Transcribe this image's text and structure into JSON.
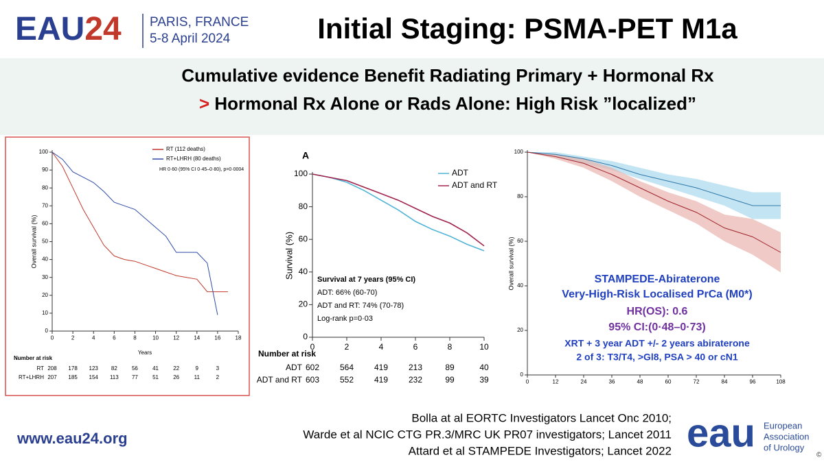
{
  "header": {
    "logo_eau": "EAU",
    "logo_year": "24",
    "location": "PARIS, FRANCE",
    "dates": "5-8 April 2024",
    "title": "Initial Staging: PSMA-PET M1a"
  },
  "subtitle": {
    "line1": "Cumulative evidence Benefit Radiating Primary + Hormonal Rx",
    "marker": ">",
    "line2": "Hormonal Rx Alone or Rads Alone:  High Risk ”localized”"
  },
  "chart_data": [
    {
      "type": "line",
      "x_label": "Years",
      "y_label": "Overall survival (%)",
      "x": [
        0,
        1,
        2,
        3,
        4,
        5,
        6,
        7,
        8,
        9,
        10,
        11,
        12,
        13,
        14,
        15,
        16,
        17
      ],
      "series": [
        {
          "name": "RT (112 deaths)",
          "color": "#c0392b",
          "values": [
            100,
            92,
            80,
            68,
            58,
            48,
            42,
            40,
            39,
            37,
            35,
            33,
            31,
            30,
            29,
            22,
            22,
            22
          ]
        },
        {
          "name": "RT+LHRH (80 deaths)",
          "color": "#2c4aa8",
          "values": [
            100,
            96,
            89,
            86,
            83,
            78,
            72,
            70,
            68,
            63,
            58,
            53,
            44,
            44,
            44,
            38,
            9,
            null
          ]
        }
      ],
      "annotation": "HR 0·60 (95% CI 0·45–0·80), p=0·0004",
      "xlim": [
        0,
        18
      ],
      "xticks": [
        0,
        2,
        4,
        6,
        8,
        10,
        12,
        14,
        16,
        18
      ],
      "ylim": [
        0,
        100
      ],
      "yticks": [
        0,
        10,
        20,
        30,
        40,
        50,
        60,
        70,
        80,
        90,
        100
      ],
      "risk_table": {
        "title": "Number at risk",
        "rows": [
          {
            "label": "RT",
            "values": [
              208,
              178,
              123,
              82,
              56,
              41,
              22,
              9,
              3
            ]
          },
          {
            "label": "RT+LHRH",
            "values": [
              207,
              185,
              154,
              113,
              77,
              51,
              26,
              11,
              2
            ]
          }
        ]
      }
    },
    {
      "type": "line",
      "panel_label": "A",
      "y_label": "Survival (%)",
      "x": [
        0,
        1,
        2,
        3,
        4,
        5,
        6,
        7,
        8,
        9,
        10
      ],
      "series": [
        {
          "name": "ADT",
          "color": "#4fb3d6",
          "values": [
            100,
            98,
            95,
            90,
            84,
            78,
            71,
            66,
            62,
            57,
            53
          ]
        },
        {
          "name": "ADT and RT",
          "color": "#a0224a",
          "values": [
            100,
            98,
            96,
            92,
            88,
            84,
            79,
            74,
            70,
            64,
            56
          ]
        }
      ],
      "box_text": [
        "Survival at 7 years (95% CI)",
        "ADT: 66% (60-70)",
        "ADT and RT: 74% (70-78)",
        "Log-rank p=0·03"
      ],
      "xlim": [
        0,
        10
      ],
      "xticks": [
        0,
        2,
        4,
        6,
        8,
        10
      ],
      "ylim": [
        0,
        100
      ],
      "yticks": [
        0,
        20,
        40,
        60,
        80,
        100
      ],
      "risk_table": {
        "title": "Number at risk",
        "rows": [
          {
            "label": "ADT",
            "values": [
              602,
              564,
              419,
              213,
              89,
              40
            ]
          },
          {
            "label": "ADT and RT",
            "values": [
              603,
              552,
              419,
              232,
              99,
              39
            ]
          }
        ]
      }
    },
    {
      "type": "line",
      "y_label": "Overall survival (%)",
      "x": [
        0,
        12,
        24,
        36,
        48,
        60,
        72,
        84,
        96,
        108
      ],
      "series": [
        {
          "color": "#2f78a8",
          "band_color": "#a9d8ec",
          "values": [
            100,
            99,
            97,
            94,
            90,
            87,
            84,
            80,
            76,
            76
          ],
          "lower": [
            100,
            98,
            95,
            92,
            88,
            84,
            80,
            76,
            70,
            70
          ],
          "upper": [
            100,
            100,
            98,
            96,
            93,
            90,
            88,
            85,
            82,
            82
          ]
        },
        {
          "color": "#a0222c",
          "band_color": "#e8b3ae",
          "values": [
            100,
            98,
            95,
            90,
            84,
            78,
            73,
            66,
            62,
            55
          ],
          "lower": [
            100,
            97,
            93,
            87,
            80,
            74,
            68,
            60,
            54,
            46
          ],
          "upper": [
            100,
            99,
            97,
            93,
            87,
            82,
            78,
            72,
            70,
            64
          ]
        }
      ],
      "annotations": [
        {
          "text": "STAMPEDE-Abiraterone",
          "color": "#1f3fbf"
        },
        {
          "text": "Very-High-Risk Localised PrCa (M0*)",
          "color": "#1f3fbf"
        },
        {
          "text": "HR(OS): 0.6",
          "color": "#7030a0"
        },
        {
          "text": "95% CI:(0·48–0·73)",
          "color": "#7030a0"
        },
        {
          "text": "XRT + 3 year ADT +/- 2 years abiraterone",
          "color": "#1f3fbf"
        },
        {
          "text": "2 of 3: T3/T4, >Gl8, PSA > 40 or cN1",
          "color": "#1f3fbf"
        }
      ],
      "xlim": [
        0,
        108
      ],
      "xticks": [
        0,
        12,
        24,
        36,
        48,
        60,
        72,
        84,
        96,
        108
      ],
      "ylim": [
        0,
        100
      ],
      "yticks": [
        0,
        20,
        40,
        60,
        80,
        100
      ]
    }
  ],
  "footer": {
    "url": "www.eau24.org",
    "references": [
      "Bolla at al EORTC Investigators Lancet Onc 2010;",
      "Warde et al NCIC CTG PR.3/MRC UK PR07 investigators; Lancet 2011",
      "Attard et al STAMPEDE Investigators; Lancet 2022"
    ],
    "logo": "eau",
    "org_lines": [
      "European",
      "Association",
      "of Urology"
    ],
    "copyright": "©"
  }
}
